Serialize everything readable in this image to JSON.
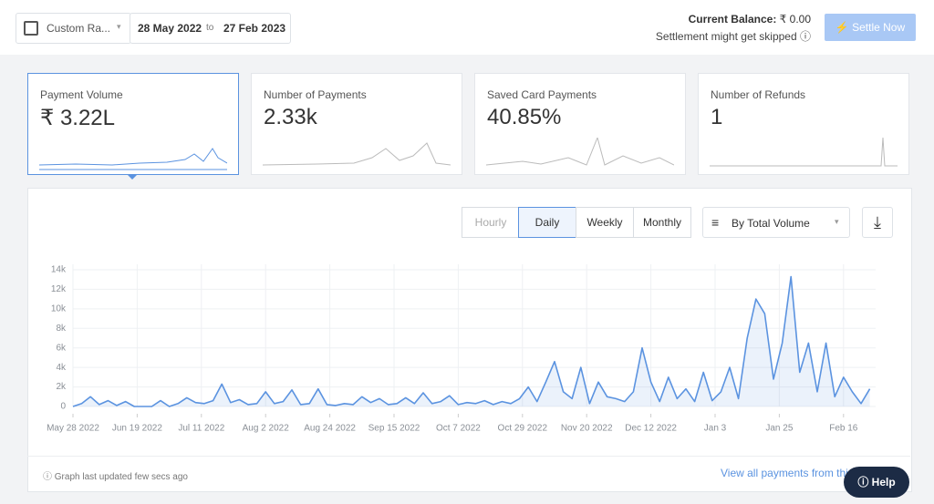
{
  "ui": {
    "date_filter": {
      "range_label": "Custom Ra...",
      "from": "28 May 2022",
      "separator": "to",
      "to": "27 Feb 2023"
    },
    "balance": {
      "label": "Current Balance:",
      "amount": "₹ 0.00",
      "note": "Settlement might get skipped"
    },
    "settle_button": "Settle Now",
    "cards": [
      {
        "label": "Payment Volume",
        "value": "₹ 3.22L"
      },
      {
        "label": "Number of Payments",
        "value": "2.33k"
      },
      {
        "label": "Saved Card Payments",
        "value": "40.85%"
      },
      {
        "label": "Number of Refunds",
        "value": "1"
      }
    ],
    "tabs": [
      "Hourly",
      "Daily",
      "Weekly",
      "Monthly"
    ],
    "sort": "By Total Volume",
    "footer_note": "Graph last updated few secs ago",
    "footer_link": "View all payments from this",
    "help": "Help"
  },
  "chart_data": {
    "type": "line",
    "color": "#5b93e0",
    "grid": true,
    "xlim": [
      0,
      275
    ],
    "xticks": [
      {
        "value": 0,
        "label": "May 28 2022"
      },
      {
        "value": 22,
        "label": "Jun 19 2022"
      },
      {
        "value": 44,
        "label": "Jul 11 2022"
      },
      {
        "value": 66,
        "label": "Aug 2 2022"
      },
      {
        "value": 88,
        "label": "Aug 24 2022"
      },
      {
        "value": 110,
        "label": "Sep 15 2022"
      },
      {
        "value": 132,
        "label": "Oct 7 2022"
      },
      {
        "value": 154,
        "label": "Oct 29 2022"
      },
      {
        "value": 176,
        "label": "Nov 20 2022"
      },
      {
        "value": 198,
        "label": "Dec 12 2022"
      },
      {
        "value": 220,
        "label": "Jan 3"
      },
      {
        "value": 242,
        "label": "Jan 25"
      },
      {
        "value": 264,
        "label": "Feb 16"
      }
    ],
    "ylim": [
      0,
      14000
    ],
    "yticks": [
      0,
      {
        "value": 2000,
        "label": "2k"
      },
      {
        "value": 4000,
        "label": "4k"
      },
      {
        "value": 6000,
        "label": "6k"
      },
      {
        "value": 8000,
        "label": "8k"
      },
      {
        "value": 10000,
        "label": "10k"
      },
      {
        "value": 12000,
        "label": "12k"
      },
      {
        "value": 14000,
        "label": "14k"
      }
    ],
    "series": [
      {
        "x": [
          0,
          3,
          6,
          9,
          12,
          15,
          18,
          21,
          24,
          27,
          30,
          33,
          36,
          39,
          42,
          45,
          48,
          51,
          54,
          57,
          60,
          63,
          66,
          69,
          72,
          75,
          78,
          81,
          84,
          87,
          90,
          93,
          96,
          99,
          102,
          105,
          108,
          111,
          114,
          117,
          120,
          123,
          126,
          129,
          132,
          135,
          138,
          141,
          144,
          147,
          150,
          153,
          156,
          159,
          162,
          165,
          168,
          171,
          174,
          177,
          180,
          183,
          186,
          189,
          192,
          195,
          198,
          201,
          204,
          207,
          210,
          213,
          216,
          219,
          222,
          225,
          228,
          231,
          234,
          237,
          240,
          243,
          246,
          249,
          252,
          255,
          258,
          261,
          264,
          267,
          270,
          273
        ],
        "values": [
          0,
          300,
          1000,
          200,
          600,
          100,
          500,
          0,
          0,
          0,
          600,
          0,
          300,
          900,
          400,
          300,
          600,
          2300,
          400,
          700,
          200,
          300,
          1500,
          300,
          500,
          1700,
          200,
          300,
          1800,
          200,
          100,
          300,
          200,
          1000,
          400,
          800,
          200,
          300,
          900,
          300,
          1400,
          300,
          500,
          1100,
          200,
          400,
          300,
          600,
          200,
          500,
          300,
          800,
          2000,
          500,
          2500,
          4600,
          1500,
          800,
          4000,
          300,
          2500,
          1000,
          800,
          500,
          1500,
          6000,
          2500,
          500,
          3000,
          800,
          1800,
          500,
          3500,
          600,
          1500,
          4000,
          800,
          7000,
          11000,
          9500,
          2800,
          6500,
          13300,
          3500,
          6500,
          1500,
          6500,
          1000,
          3000,
          1500,
          300,
          1800
        ]
      }
    ]
  }
}
